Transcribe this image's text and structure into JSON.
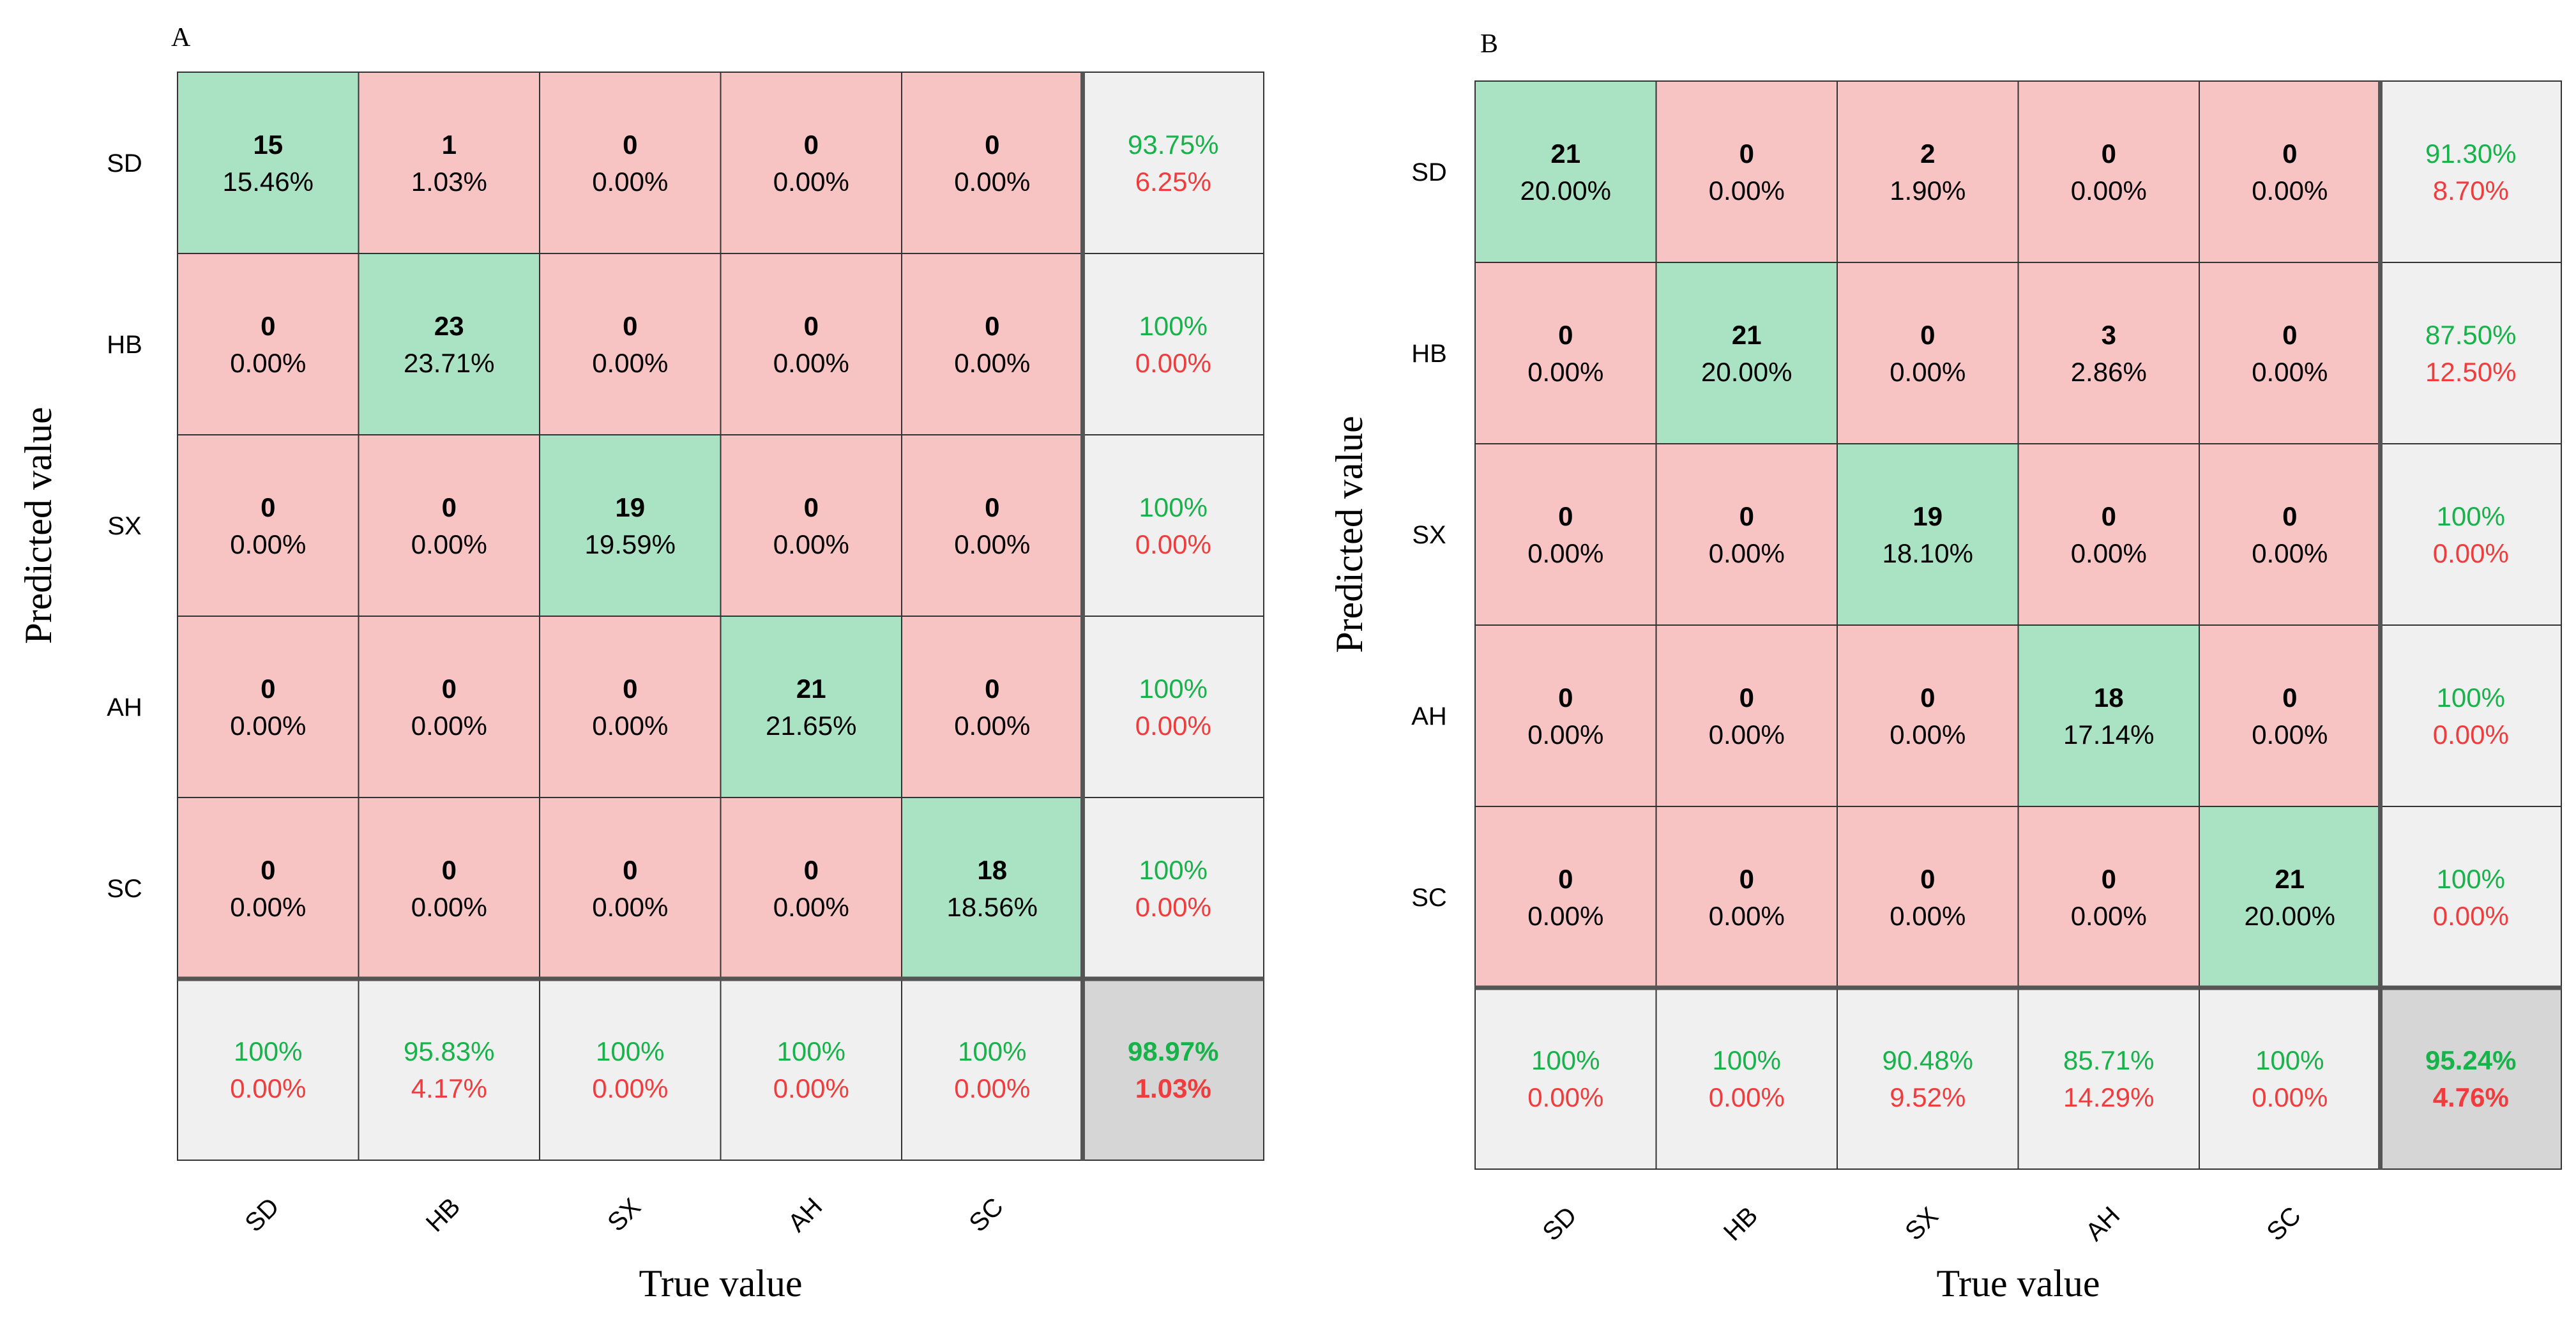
{
  "colors": {
    "diag_fill": "#a9e3c3",
    "offdiag_fill": "#f8c3c3",
    "summary_fill": "#f0f0f0",
    "total_fill": "#d6d6d6",
    "good_text": "#17b24a",
    "bad_text": "#f03c3c",
    "grid": "#333333"
  },
  "chart_data": [
    {
      "type": "heatmap",
      "panel_label": "A",
      "xlabel": "True value",
      "ylabel": "Predicted value",
      "row_labels": [
        "SD",
        "HB",
        "SX",
        "AH",
        "SC"
      ],
      "col_labels": [
        "SD",
        "HB",
        "SX",
        "AH",
        "SC"
      ],
      "counts": [
        [
          15,
          1,
          0,
          0,
          0
        ],
        [
          0,
          23,
          0,
          0,
          0
        ],
        [
          0,
          0,
          19,
          0,
          0
        ],
        [
          0,
          0,
          0,
          21,
          0
        ],
        [
          0,
          0,
          0,
          0,
          18
        ]
      ],
      "percents": [
        [
          "15.46%",
          "1.03%",
          "0.00%",
          "0.00%",
          "0.00%"
        ],
        [
          "0.00%",
          "23.71%",
          "0.00%",
          "0.00%",
          "0.00%"
        ],
        [
          "0.00%",
          "0.00%",
          "19.59%",
          "0.00%",
          "0.00%"
        ],
        [
          "0.00%",
          "0.00%",
          "0.00%",
          "21.65%",
          "0.00%"
        ],
        [
          "0.00%",
          "0.00%",
          "0.00%",
          "0.00%",
          "18.56%"
        ]
      ],
      "row_summary": [
        [
          "93.75%",
          "6.25%"
        ],
        [
          "100%",
          "0.00%"
        ],
        [
          "100%",
          "0.00%"
        ],
        [
          "100%",
          "0.00%"
        ],
        [
          "100%",
          "0.00%"
        ]
      ],
      "col_summary": [
        [
          "100%",
          "0.00%"
        ],
        [
          "95.83%",
          "4.17%"
        ],
        [
          "100%",
          "0.00%"
        ],
        [
          "100%",
          "0.00%"
        ],
        [
          "100%",
          "0.00%"
        ]
      ],
      "overall": [
        "98.97%",
        "1.03%"
      ]
    },
    {
      "type": "heatmap",
      "panel_label": "B",
      "xlabel": "True value",
      "ylabel": "Predicted value",
      "row_labels": [
        "SD",
        "HB",
        "SX",
        "AH",
        "SC"
      ],
      "col_labels": [
        "SD",
        "HB",
        "SX",
        "AH",
        "SC"
      ],
      "counts": [
        [
          21,
          0,
          2,
          0,
          0
        ],
        [
          0,
          21,
          0,
          3,
          0
        ],
        [
          0,
          0,
          19,
          0,
          0
        ],
        [
          0,
          0,
          0,
          18,
          0
        ],
        [
          0,
          0,
          0,
          0,
          21
        ]
      ],
      "percents": [
        [
          "20.00%",
          "0.00%",
          "1.90%",
          "0.00%",
          "0.00%"
        ],
        [
          "0.00%",
          "20.00%",
          "0.00%",
          "2.86%",
          "0.00%"
        ],
        [
          "0.00%",
          "0.00%",
          "18.10%",
          "0.00%",
          "0.00%"
        ],
        [
          "0.00%",
          "0.00%",
          "0.00%",
          "17.14%",
          "0.00%"
        ],
        [
          "0.00%",
          "0.00%",
          "0.00%",
          "0.00%",
          "20.00%"
        ]
      ],
      "row_summary": [
        [
          "91.30%",
          "8.70%"
        ],
        [
          "87.50%",
          "12.50%"
        ],
        [
          "100%",
          "0.00%"
        ],
        [
          "100%",
          "0.00%"
        ],
        [
          "100%",
          "0.00%"
        ]
      ],
      "col_summary": [
        [
          "100%",
          "0.00%"
        ],
        [
          "100%",
          "0.00%"
        ],
        [
          "90.48%",
          "9.52%"
        ],
        [
          "85.71%",
          "14.29%"
        ],
        [
          "100%",
          "0.00%"
        ]
      ],
      "overall": [
        "95.24%",
        "4.76%"
      ]
    }
  ]
}
